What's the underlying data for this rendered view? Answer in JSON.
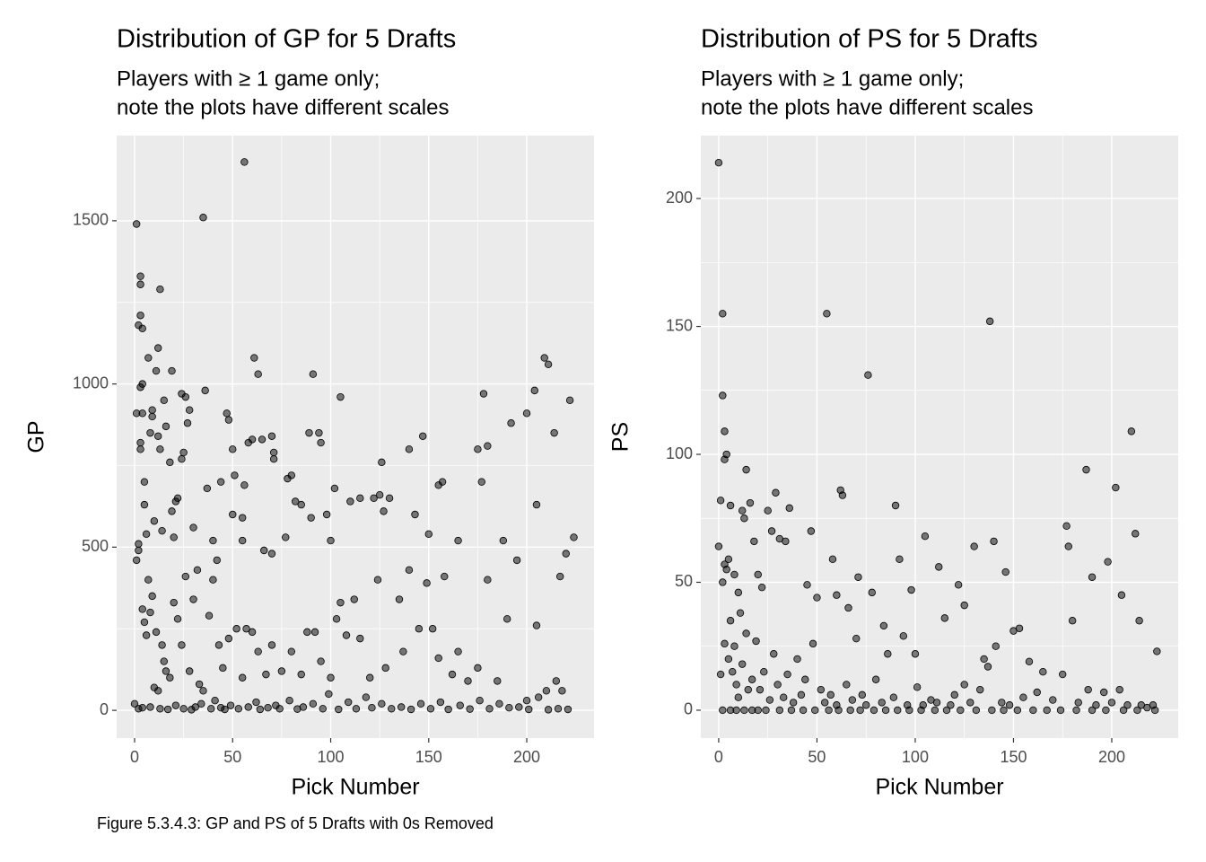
{
  "chart_data": [
    {
      "type": "scatter",
      "title": "Distribution of GP for 5 Drafts",
      "subtitle": [
        "Players with ≥ 1 game only;",
        "note the plots have different scales"
      ],
      "x_label": "Pick Number",
      "y_label": "GP",
      "color": "#000000",
      "xlim": [
        -9.15,
        234.3
      ],
      "xticks": [
        0,
        50,
        100,
        150,
        200
      ],
      "ylim": [
        -85,
        1761
      ],
      "yticks": [
        0,
        500,
        1000,
        1500
      ],
      "grid": true,
      "x": [
        1,
        2,
        3,
        3,
        3,
        4,
        1,
        2,
        1,
        2,
        3,
        3,
        3,
        4,
        4,
        5,
        5,
        4,
        6,
        7,
        8,
        9,
        9,
        10,
        11,
        12,
        12,
        13,
        13,
        14,
        15,
        16,
        18,
        19,
        19,
        20,
        21,
        22,
        24,
        24,
        25,
        26,
        27,
        28,
        30,
        35,
        36,
        37,
        40,
        42,
        44,
        47,
        48,
        50,
        50,
        51,
        55,
        56,
        55,
        56,
        58,
        60,
        61,
        63,
        65,
        66,
        70,
        70,
        71,
        71,
        77,
        78,
        80,
        82,
        85,
        89,
        90,
        91,
        94,
        95,
        98,
        100,
        102,
        105,
        110,
        115,
        122,
        125,
        126,
        127,
        130,
        140,
        143,
        147,
        150,
        155,
        157,
        165,
        175,
        177,
        180,
        178,
        188,
        192,
        200,
        204,
        205,
        209,
        211,
        214,
        217,
        220,
        222,
        224,
        5,
        6,
        7,
        8,
        9,
        10,
        11,
        12,
        14,
        15,
        16,
        18,
        20,
        22,
        24,
        26,
        28,
        30,
        32,
        33,
        35,
        38,
        40,
        43,
        45,
        48,
        52,
        55,
        57,
        60,
        63,
        67,
        70,
        75,
        80,
        85,
        88,
        92,
        95,
        100,
        103,
        105,
        108,
        112,
        115,
        120,
        124,
        128,
        135,
        137,
        140,
        145,
        149,
        152,
        155,
        158,
        162,
        165,
        170,
        175,
        180,
        185,
        190,
        195,
        200,
        205,
        210,
        215,
        218,
        0,
        2,
        4,
        8,
        13,
        17,
        21,
        25,
        29,
        31,
        34,
        39,
        41,
        44,
        46,
        49,
        53,
        58,
        62,
        64,
        68,
        72,
        74,
        79,
        83,
        86,
        91,
        96,
        99,
        104,
        109,
        113,
        118,
        121,
        126,
        131,
        136,
        141,
        146,
        151,
        156,
        160,
        166,
        171,
        176,
        181,
        186,
        191,
        196,
        201,
        206,
        211,
        216,
        221
      ],
      "values": [
        1490,
        1180,
        1210,
        1305,
        1330,
        1170,
        910,
        510,
        460,
        490,
        990,
        820,
        800,
        1000,
        910,
        700,
        630,
        310,
        540,
        1080,
        850,
        920,
        900,
        580,
        1040,
        1110,
        840,
        1290,
        800,
        550,
        950,
        870,
        760,
        1040,
        610,
        530,
        640,
        650,
        970,
        770,
        790,
        960,
        880,
        920,
        560,
        1510,
        980,
        680,
        520,
        460,
        700,
        910,
        890,
        800,
        600,
        720,
        590,
        1680,
        520,
        690,
        820,
        830,
        1080,
        1030,
        830,
        490,
        480,
        840,
        790,
        770,
        530,
        710,
        720,
        640,
        630,
        850,
        590,
        1030,
        850,
        820,
        600,
        520,
        680,
        960,
        640,
        650,
        650,
        660,
        760,
        610,
        650,
        800,
        600,
        840,
        540,
        690,
        700,
        520,
        800,
        700,
        810,
        970,
        520,
        880,
        910,
        980,
        630,
        1080,
        1060,
        850,
        410,
        480,
        950,
        530,
        270,
        230,
        400,
        300,
        350,
        70,
        240,
        60,
        200,
        150,
        120,
        100,
        330,
        280,
        200,
        410,
        120,
        340,
        430,
        80,
        60,
        290,
        400,
        200,
        130,
        220,
        250,
        100,
        250,
        240,
        180,
        110,
        200,
        120,
        180,
        110,
        240,
        240,
        150,
        100,
        280,
        330,
        230,
        340,
        220,
        100,
        400,
        130,
        340,
        180,
        430,
        250,
        390,
        250,
        160,
        410,
        110,
        180,
        90,
        130,
        400,
        90,
        280,
        460,
        30,
        260,
        60,
        90,
        60,
        20,
        5,
        8,
        10,
        5,
        3,
        15,
        5,
        2,
        10,
        20,
        5,
        30,
        8,
        3,
        15,
        5,
        10,
        25,
        3,
        8,
        15,
        5,
        30,
        4,
        10,
        20,
        5,
        50,
        3,
        25,
        5,
        40,
        8,
        20,
        5,
        10,
        3,
        20,
        5,
        25,
        3,
        15,
        4,
        30,
        5,
        20,
        8,
        10,
        3,
        40,
        2,
        5,
        3
      ]
    },
    {
      "type": "scatter",
      "title": "Distribution of PS for 5 Drafts",
      "subtitle": [
        "Players with ≥ 1 game only;",
        "note the plots have different scales"
      ],
      "x_label": "Pick Number",
      "y_label": "PS",
      "color": "#000000",
      "xlim": [
        -9.1,
        233.8
      ],
      "xticks": [
        0,
        50,
        100,
        150,
        200
      ],
      "ylim": [
        -10.9,
        224.6
      ],
      "yticks": [
        0,
        50,
        100,
        150,
        200
      ],
      "grid": true,
      "x": [
        0,
        2,
        2,
        3,
        4,
        3,
        1,
        0,
        2,
        3,
        4,
        5,
        6,
        8,
        10,
        12,
        13,
        14,
        16,
        18,
        20,
        22,
        25,
        27,
        29,
        31,
        34,
        36,
        45,
        47,
        50,
        55,
        58,
        60,
        62,
        63,
        66,
        71,
        76,
        78,
        84,
        90,
        92,
        98,
        100,
        105,
        112,
        115,
        122,
        125,
        130,
        135,
        138,
        140,
        146,
        150,
        153,
        177,
        178,
        180,
        187,
        190,
        198,
        202,
        205,
        210,
        212,
        214,
        223,
        1,
        3,
        5,
        6,
        7,
        8,
        9,
        10,
        11,
        12,
        14,
        15,
        17,
        19,
        21,
        23,
        26,
        28,
        30,
        33,
        35,
        38,
        40,
        42,
        44,
        48,
        52,
        54,
        57,
        60,
        65,
        68,
        70,
        73,
        75,
        80,
        83,
        86,
        89,
        94,
        96,
        101,
        104,
        108,
        111,
        118,
        120,
        125,
        128,
        133,
        137,
        141,
        144,
        148,
        155,
        158,
        162,
        165,
        170,
        175,
        183,
        188,
        192,
        196,
        200,
        204,
        208,
        215,
        218,
        221,
        2,
        6,
        9,
        13,
        17,
        20,
        24,
        31,
        37,
        43,
        49,
        56,
        61,
        67,
        72,
        79,
        85,
        91,
        97,
        103,
        110,
        116,
        123,
        131,
        139,
        145,
        152,
        160,
        167,
        174,
        182,
        190,
        197,
        206,
        213,
        222
      ],
      "values": [
        214,
        155,
        123,
        109,
        100,
        98,
        82,
        64,
        50,
        57,
        55,
        59,
        80,
        53,
        46,
        78,
        75,
        94,
        81,
        66,
        53,
        48,
        78,
        70,
        85,
        67,
        66,
        79,
        49,
        70,
        44,
        155,
        59,
        45,
        86,
        84,
        40,
        52,
        131,
        46,
        33,
        80,
        59,
        47,
        22,
        68,
        56,
        36,
        49,
        41,
        64,
        20,
        152,
        66,
        54,
        31,
        32,
        72,
        64,
        35,
        94,
        52,
        58,
        87,
        45,
        109,
        69,
        35,
        23,
        14,
        26,
        20,
        35,
        15,
        25,
        10,
        5,
        38,
        18,
        30,
        8,
        12,
        27,
        8,
        15,
        4,
        22,
        10,
        5,
        14,
        3,
        20,
        6,
        12,
        26,
        8,
        3,
        6,
        2,
        10,
        4,
        28,
        6,
        2,
        12,
        3,
        22,
        5,
        29,
        2,
        9,
        2,
        4,
        3,
        2,
        6,
        10,
        3,
        8,
        17,
        25,
        3,
        2,
        5,
        19,
        7,
        15,
        4,
        14,
        3,
        8,
        2,
        7,
        3,
        8,
        2,
        2,
        1,
        2,
        0,
        0,
        0,
        0,
        0,
        0,
        0,
        0,
        0,
        0,
        0,
        0,
        0,
        0,
        0,
        0,
        0,
        0,
        0,
        0,
        0,
        0,
        0,
        0,
        0,
        0,
        0,
        0,
        0,
        0,
        0,
        0,
        0,
        0,
        0,
        0
      ]
    }
  ],
  "caption": "Figure 5.3.4.3: GP and PS of 5 Drafts with 0s Removed"
}
